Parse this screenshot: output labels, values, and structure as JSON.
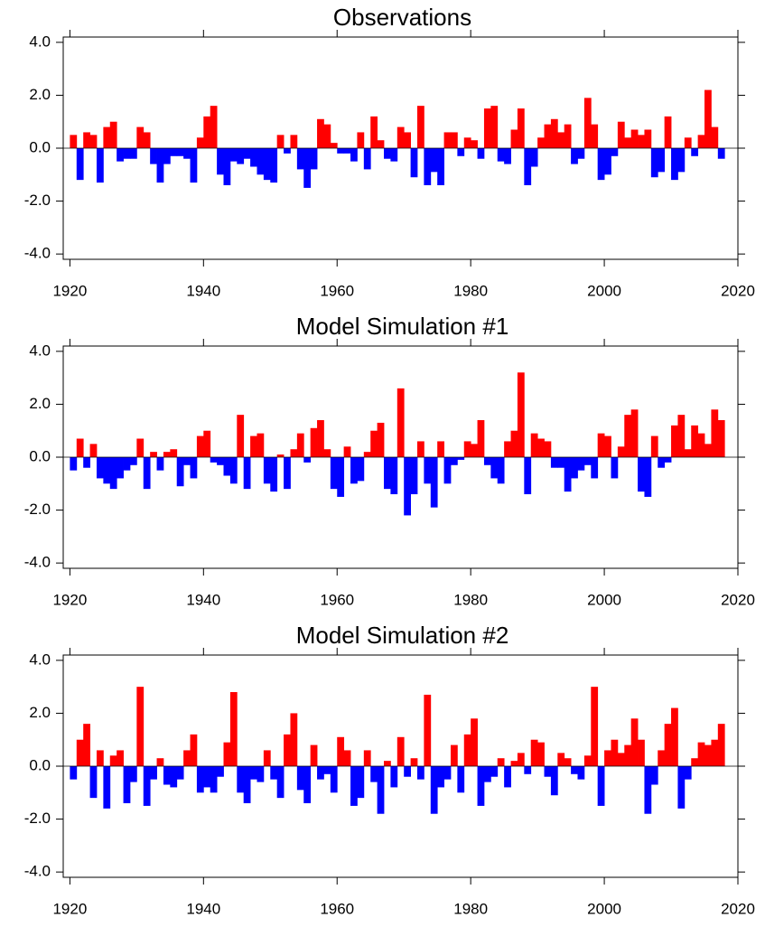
{
  "chart_data": [
    {
      "type": "area",
      "title": "Observations",
      "positive_color": "#ff0000",
      "negative_color": "#0000ff",
      "x": [
        1920,
        1921,
        1922,
        1923,
        1924,
        1925,
        1926,
        1927,
        1928,
        1929,
        1930,
        1931,
        1932,
        1933,
        1934,
        1935,
        1936,
        1937,
        1938,
        1939,
        1940,
        1941,
        1942,
        1943,
        1944,
        1945,
        1946,
        1947,
        1948,
        1949,
        1950,
        1951,
        1952,
        1953,
        1954,
        1955,
        1956,
        1957,
        1958,
        1959,
        1960,
        1961,
        1962,
        1963,
        1964,
        1965,
        1966,
        1967,
        1968,
        1969,
        1970,
        1971,
        1972,
        1973,
        1974,
        1975,
        1976,
        1977,
        1978,
        1979,
        1980,
        1981,
        1982,
        1983,
        1984,
        1985,
        1986,
        1987,
        1988,
        1989,
        1990,
        1991,
        1992,
        1993,
        1994,
        1995,
        1996,
        1997,
        1998,
        1999,
        2000,
        2001,
        2002,
        2003,
        2004,
        2005,
        2006,
        2007,
        2008,
        2009,
        2010,
        2011,
        2012,
        2013,
        2014,
        2015,
        2016,
        2017
      ],
      "values": [
        0.5,
        -1.2,
        0.6,
        0.5,
        -1.3,
        0.8,
        1.0,
        -0.5,
        -0.4,
        -0.4,
        0.8,
        0.6,
        -0.6,
        -1.3,
        -0.6,
        -0.3,
        -0.3,
        -0.4,
        -1.3,
        0.4,
        1.2,
        1.6,
        -1.0,
        -1.4,
        -0.5,
        -0.6,
        -0.4,
        -0.7,
        -1.0,
        -1.2,
        -1.3,
        0.5,
        -0.2,
        0.5,
        -0.8,
        -1.5,
        -0.8,
        1.1,
        0.9,
        0.2,
        -0.2,
        -0.2,
        -0.5,
        0.6,
        -0.8,
        1.2,
        0.3,
        -0.4,
        -0.5,
        0.8,
        0.6,
        -1.1,
        1.6,
        -1.4,
        -0.9,
        -1.4,
        0.6,
        0.6,
        -0.3,
        0.4,
        0.3,
        -0.4,
        1.5,
        1.6,
        -0.5,
        -0.6,
        0.7,
        1.5,
        -1.4,
        -0.7,
        0.4,
        0.9,
        1.1,
        0.6,
        0.9,
        -0.6,
        -0.4,
        1.9,
        0.9,
        -1.2,
        -1.0,
        -0.3,
        1.0,
        0.4,
        0.7,
        0.5,
        0.7,
        -1.1,
        -0.9,
        1.2,
        -1.2,
        -0.9,
        0.4,
        -0.3,
        0.5,
        2.2,
        0.8,
        -0.4
      ],
      "xlim": [
        1919,
        2020
      ],
      "ylim": [
        -4.2,
        4.2
      ],
      "xticks": [
        1920,
        1940,
        1960,
        1980,
        2000,
        2020
      ],
      "yticks": [
        {
          "value": 4,
          "label": "4.0"
        },
        {
          "value": 2,
          "label": "2.0"
        },
        {
          "value": 0,
          "label": "0.0"
        },
        {
          "value": -2,
          "label": "-2.0"
        },
        {
          "value": -4,
          "label": "-4.0"
        }
      ]
    },
    {
      "type": "area",
      "title": "Model Simulation #1",
      "positive_color": "#ff0000",
      "negative_color": "#0000ff",
      "x": [
        1920,
        1921,
        1922,
        1923,
        1924,
        1925,
        1926,
        1927,
        1928,
        1929,
        1930,
        1931,
        1932,
        1933,
        1934,
        1935,
        1936,
        1937,
        1938,
        1939,
        1940,
        1941,
        1942,
        1943,
        1944,
        1945,
        1946,
        1947,
        1948,
        1949,
        1950,
        1951,
        1952,
        1953,
        1954,
        1955,
        1956,
        1957,
        1958,
        1959,
        1960,
        1961,
        1962,
        1963,
        1964,
        1965,
        1966,
        1967,
        1968,
        1969,
        1970,
        1971,
        1972,
        1973,
        1974,
        1975,
        1976,
        1977,
        1978,
        1979,
        1980,
        1981,
        1982,
        1983,
        1984,
        1985,
        1986,
        1987,
        1988,
        1989,
        1990,
        1991,
        1992,
        1993,
        1994,
        1995,
        1996,
        1997,
        1998,
        1999,
        2000,
        2001,
        2002,
        2003,
        2004,
        2005,
        2006,
        2007,
        2008,
        2009,
        2010,
        2011,
        2012,
        2013,
        2014,
        2015,
        2016,
        2017
      ],
      "values": [
        -0.5,
        0.7,
        -0.4,
        0.5,
        -0.8,
        -1.0,
        -1.2,
        -0.8,
        -0.5,
        -0.3,
        0.7,
        -1.2,
        0.2,
        -0.5,
        0.2,
        0.3,
        -1.1,
        -0.3,
        -0.8,
        0.8,
        1.0,
        -0.2,
        -0.3,
        -0.7,
        -1.0,
        1.6,
        -1.2,
        0.8,
        0.9,
        -1.0,
        -1.3,
        0.1,
        -1.2,
        0.3,
        0.9,
        -0.2,
        1.1,
        1.4,
        0.3,
        -1.2,
        -1.5,
        0.4,
        -1.0,
        -0.9,
        0.2,
        1.0,
        1.3,
        -1.2,
        -1.4,
        2.6,
        -2.2,
        -1.4,
        0.6,
        -1.0,
        -1.9,
        0.6,
        -1.0,
        -0.3,
        -0.1,
        0.6,
        0.5,
        1.4,
        -0.3,
        -0.8,
        -1.0,
        0.6,
        1.0,
        3.2,
        -1.4,
        0.9,
        0.7,
        0.6,
        -0.4,
        -0.4,
        -1.3,
        -0.8,
        -0.5,
        -0.3,
        -0.8,
        0.9,
        0.8,
        -0.8,
        0.4,
        1.6,
        1.8,
        -1.3,
        -1.5,
        0.8,
        -0.4,
        -0.2,
        1.2,
        1.6,
        0.3,
        1.2,
        0.9,
        0.5,
        1.8,
        1.4
      ],
      "xlim": [
        1919,
        2020
      ],
      "ylim": [
        -4.2,
        4.2
      ],
      "xticks": [
        1920,
        1940,
        1960,
        1980,
        2000,
        2020
      ],
      "yticks": [
        {
          "value": 4,
          "label": "4.0"
        },
        {
          "value": 2,
          "label": "2.0"
        },
        {
          "value": 0,
          "label": "0.0"
        },
        {
          "value": -2,
          "label": "-2.0"
        },
        {
          "value": -4,
          "label": "-4.0"
        }
      ]
    },
    {
      "type": "area",
      "title": "Model Simulation #2",
      "positive_color": "#ff0000",
      "negative_color": "#0000ff",
      "x": [
        1920,
        1921,
        1922,
        1923,
        1924,
        1925,
        1926,
        1927,
        1928,
        1929,
        1930,
        1931,
        1932,
        1933,
        1934,
        1935,
        1936,
        1937,
        1938,
        1939,
        1940,
        1941,
        1942,
        1943,
        1944,
        1945,
        1946,
        1947,
        1948,
        1949,
        1950,
        1951,
        1952,
        1953,
        1954,
        1955,
        1956,
        1957,
        1958,
        1959,
        1960,
        1961,
        1962,
        1963,
        1964,
        1965,
        1966,
        1967,
        1968,
        1969,
        1970,
        1971,
        1972,
        1973,
        1974,
        1975,
        1976,
        1977,
        1978,
        1979,
        1980,
        1981,
        1982,
        1983,
        1984,
        1985,
        1986,
        1987,
        1988,
        1989,
        1990,
        1991,
        1992,
        1993,
        1994,
        1995,
        1996,
        1997,
        1998,
        1999,
        2000,
        2001,
        2002,
        2003,
        2004,
        2005,
        2006,
        2007,
        2008,
        2009,
        2010,
        2011,
        2012,
        2013,
        2014,
        2015,
        2016,
        2017
      ],
      "values": [
        -0.5,
        1.0,
        1.6,
        -1.2,
        0.6,
        -1.6,
        0.4,
        0.6,
        -1.4,
        -0.6,
        3.0,
        -1.5,
        -0.5,
        0.3,
        -0.7,
        -0.8,
        -0.5,
        0.6,
        1.2,
        -1.0,
        -0.8,
        -1.0,
        -0.4,
        0.9,
        2.8,
        -1.0,
        -1.4,
        -0.5,
        -0.6,
        0.6,
        -0.5,
        -1.2,
        1.2,
        2.0,
        -0.9,
        -1.4,
        0.8,
        -0.5,
        -0.3,
        -1.0,
        1.1,
        0.6,
        -1.5,
        -1.2,
        0.6,
        -0.6,
        -1.8,
        0.2,
        -0.8,
        1.1,
        -0.4,
        0.3,
        -0.5,
        2.7,
        -1.8,
        -0.8,
        -0.5,
        0.8,
        -1.0,
        1.2,
        1.8,
        -1.5,
        -0.6,
        -0.4,
        0.3,
        -0.8,
        0.2,
        0.5,
        -0.3,
        1.0,
        0.9,
        -0.4,
        -1.1,
        0.5,
        0.3,
        -0.3,
        -0.5,
        0.4,
        3.0,
        -1.5,
        0.6,
        1.0,
        0.5,
        0.8,
        1.8,
        1.0,
        -1.8,
        -0.7,
        0.6,
        1.6,
        2.2,
        -1.6,
        -0.5,
        0.3,
        0.9,
        0.8,
        1.0,
        1.6
      ],
      "xlim": [
        1919,
        2020
      ],
      "ylim": [
        -4.2,
        4.2
      ],
      "xticks": [
        1920,
        1940,
        1960,
        1980,
        2000,
        2020
      ],
      "yticks": [
        {
          "value": 4,
          "label": "4.0"
        },
        {
          "value": 2,
          "label": "2.0"
        },
        {
          "value": 0,
          "label": "0.0"
        },
        {
          "value": -2,
          "label": "-2.0"
        },
        {
          "value": -4,
          "label": "-4.0"
        }
      ]
    }
  ]
}
